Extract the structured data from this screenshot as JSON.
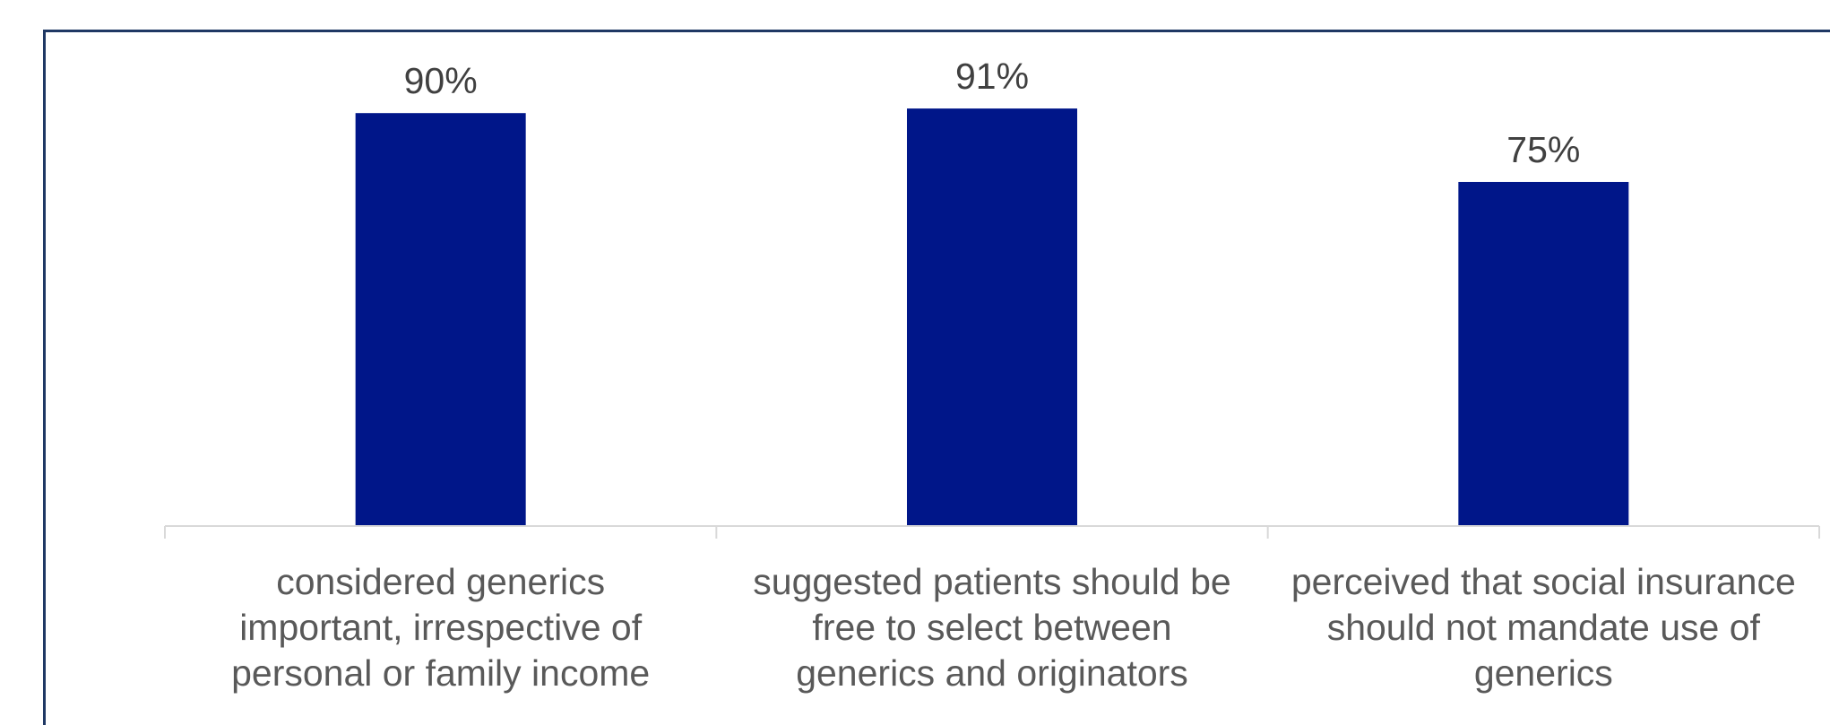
{
  "chart_data": {
    "type": "bar",
    "categories": [
      [
        "considered generics",
        "important, irrespective of",
        "personal or family income"
      ],
      [
        "suggested patients should be",
        "free to select between",
        "generics and originators"
      ],
      [
        "perceived that social insurance",
        "should not mandate use of",
        "generics"
      ]
    ],
    "values": [
      90,
      91,
      75
    ],
    "value_labels": [
      "90%",
      "91%",
      "75%"
    ],
    "ylim": [
      0,
      100
    ],
    "bar_color": "#001689",
    "axis_color": "#d9d9d9",
    "frame_color": "#1f3864",
    "grid": false,
    "legend": "none"
  }
}
